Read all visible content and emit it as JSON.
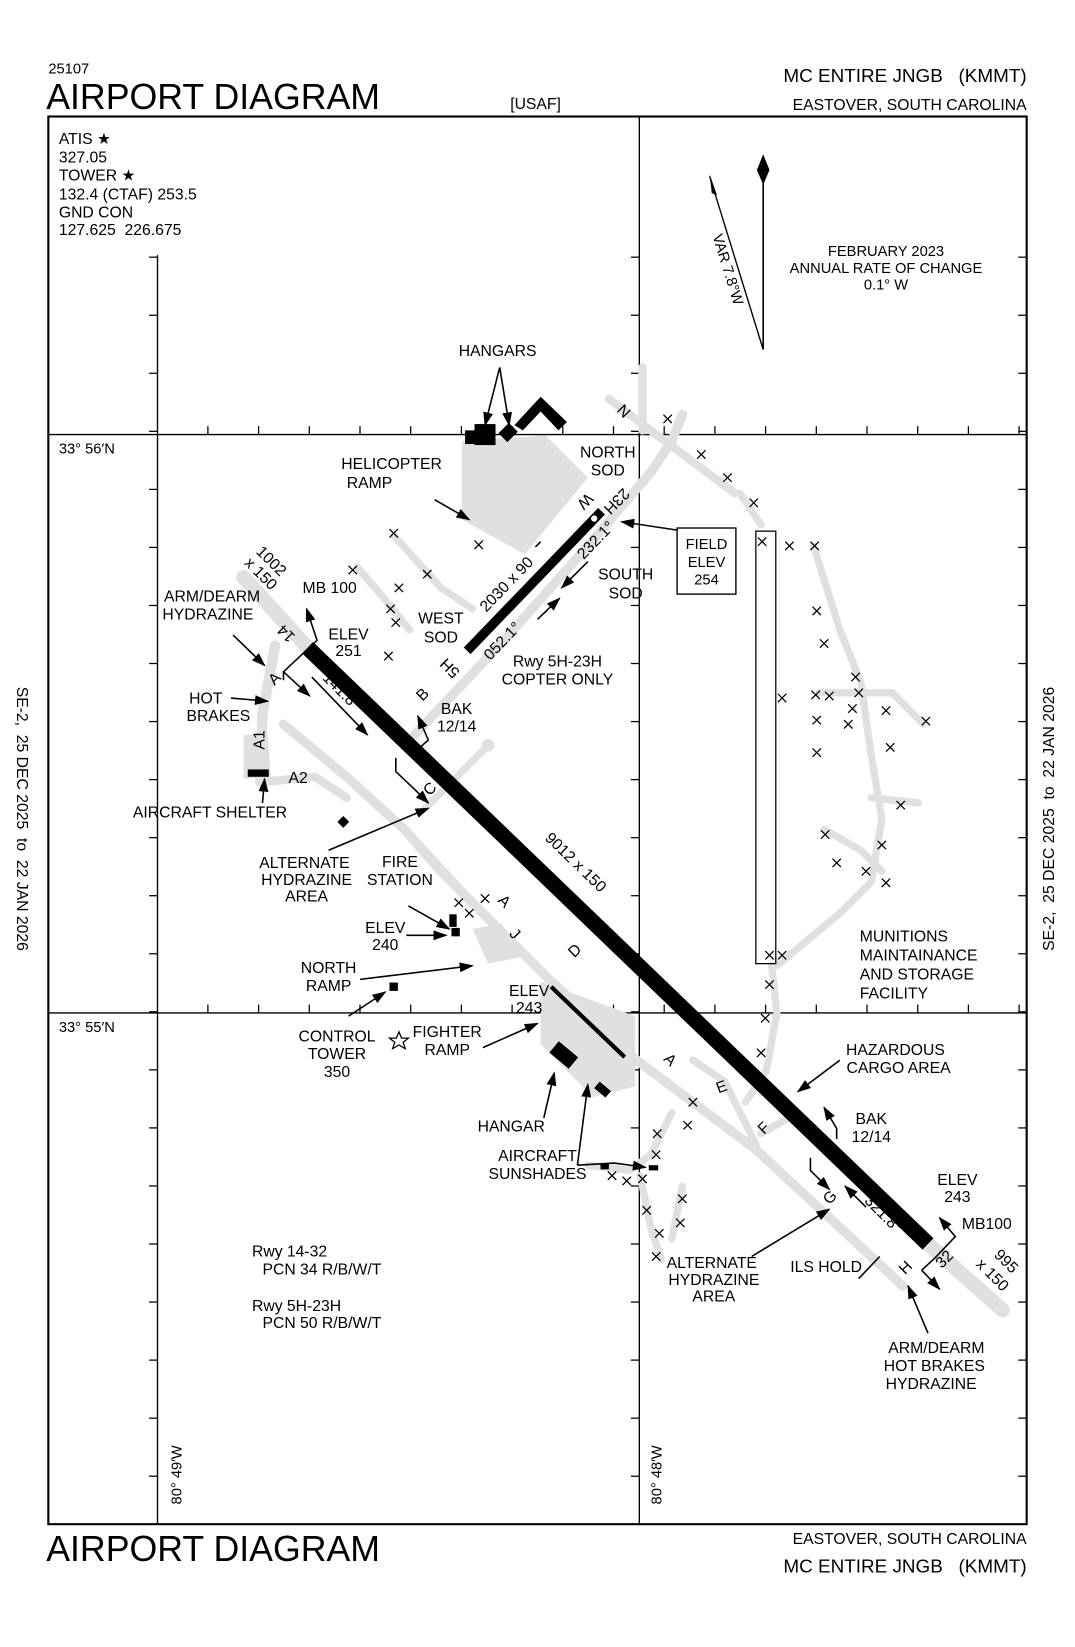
{
  "header": {
    "chart_number": "25107",
    "title": "AIRPORT DIAGRAM",
    "operator": "[USAF]",
    "airport_name": "MC ENTIRE JNGB   (KMMT)",
    "location": "EASTOVER, SOUTH CAROLINA"
  },
  "footer": {
    "title": "AIRPORT DIAGRAM",
    "location": "EASTOVER, SOUTH CAROLINA",
    "airport_name": "MC ENTIRE JNGB   (KMMT)"
  },
  "effective_dates": {
    "left": "SE-2,  25 DEC 2025  to  22 JAN 2026",
    "right": "SE-2,  25 DEC 2025  to  22 JAN 2026"
  },
  "comms": [
    "ATIS ★",
    "327.05",
    "TOWER ★",
    "132.4 (CTAF) 253.5",
    "GND CON",
    "127.625  226.675"
  ],
  "magnetic": {
    "variation": "VAR 7.8°W",
    "date": "FEBRUARY 2023",
    "rate_title": "ANNUAL RATE OF CHANGE",
    "rate": "0.1° W"
  },
  "grid_labels": {
    "lat_north": "33° 56′N",
    "lat_south": "33° 55′N",
    "lon_west": "80° 49′W",
    "lon_east": "80° 48′W"
  },
  "runway_14_32": {
    "dimensions": "9012 x 150",
    "rwy14": "14",
    "rwy32": "32",
    "heading_14": "141.8°",
    "heading_32": "321.8°",
    "overrun_14": [
      "1002",
      "x 150"
    ],
    "overrun_32": [
      "995",
      "x 150"
    ],
    "elev_14": [
      "ELEV",
      "251"
    ],
    "elev_32": [
      "ELEV",
      "243"
    ],
    "mb_14": "MB 100",
    "mb_32": "MB100",
    "bak_north": [
      "BAK",
      "12/14"
    ],
    "bak_south": [
      "BAK",
      "12/14"
    ],
    "pcn": [
      "Rwy 14-32",
      "PCN 34 R/B/W/T"
    ]
  },
  "runway_5h_23h": {
    "dimensions": "2030 x 90",
    "rwy5h": "5H",
    "rwy23h": "23H",
    "heading_5h": "052.1°",
    "heading_23h": "232.1°",
    "note": [
      "Rwy 5H-23H",
      "COPTER ONLY"
    ],
    "pcn": [
      "Rwy 5H-23H",
      "PCN 50 R/B/W/T"
    ],
    "marker_w": "W"
  },
  "field_elev": [
    "FIELD",
    "ELEV",
    "254"
  ],
  "taxiways": {
    "n": "N",
    "a": "A",
    "a1": "A1",
    "a2": "A2",
    "b": "B",
    "c": "C",
    "d": "D",
    "e": "E",
    "f": "F",
    "g": "G",
    "h": "H",
    "j": "J"
  },
  "labels": {
    "hangars": "HANGARS",
    "helicopter_ramp": [
      "HELICOPTER",
      "RAMP"
    ],
    "north_sod": [
      "NORTH",
      "SOD"
    ],
    "south_sod": [
      "SOUTH",
      "SOD"
    ],
    "west_sod": [
      "WEST",
      "SOD"
    ],
    "arm_dearm_north": [
      "ARM/DEARM",
      "HYDRAZINE"
    ],
    "hot_brakes": [
      "HOT",
      "BRAKES"
    ],
    "aircraft_shelter": "AIRCRAFT SHELTER",
    "alt_hydrazine_north": [
      "ALTERNATE",
      "HYDRAZINE",
      "AREA"
    ],
    "fire_station": [
      "FIRE",
      "STATION"
    ],
    "elev_240": [
      "ELEV",
      "240"
    ],
    "north_ramp": [
      "NORTH",
      "RAMP"
    ],
    "elev_243_ramp": [
      "ELEV",
      "243"
    ],
    "control_tower": [
      "CONTROL",
      "TOWER",
      "350"
    ],
    "fighter_ramp": [
      "FIGHTER",
      "RAMP"
    ],
    "hangar": "HANGAR",
    "aircraft_sunshades": [
      "AIRCRAFT",
      "SUNSHADES"
    ],
    "hazardous_cargo": [
      "HAZARDOUS",
      "CARGO AREA"
    ],
    "munitions": [
      "MUNITIONS",
      "MAINTAINANCE",
      "AND STORAGE",
      "FACILITY"
    ],
    "ils_hold": "ILS HOLD",
    "alt_hydrazine_south": [
      "ALTERNATE",
      "HYDRAZINE",
      "AREA"
    ],
    "arm_dearm_south": [
      "ARM/DEARM",
      "HOT BRAKES",
      "HYDRAZINE"
    ]
  },
  "colors": {
    "pavement": "#e0e0e0",
    "runway": "#000000",
    "ink": "#000000"
  }
}
